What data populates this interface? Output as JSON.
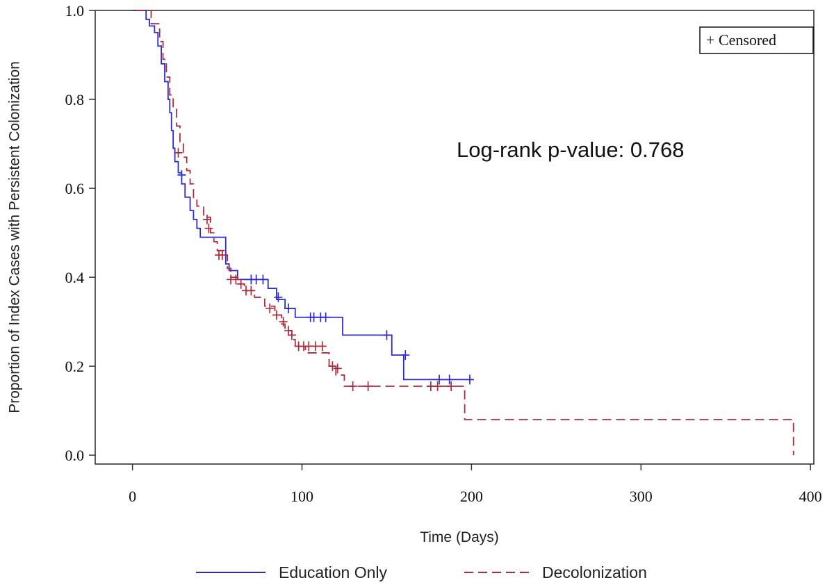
{
  "chart_data": {
    "type": "line",
    "xlabel": "Time (Days)",
    "ylabel": "Proportion of Index Cases with Persistent Colonization",
    "xlim": [
      -22,
      402
    ],
    "ylim": [
      -0.02,
      1.0
    ],
    "xticks": [
      0,
      100,
      200,
      300,
      400
    ],
    "xtick_labels": [
      "0",
      "100",
      "200",
      "300",
      "400"
    ],
    "yticks": [
      0.0,
      0.2,
      0.4,
      0.6,
      0.8,
      1.0
    ],
    "ytick_labels": [
      "0.0",
      "0.2",
      "0.4",
      "0.6",
      "0.8",
      "1.0"
    ],
    "annotation": "Log-rank p-value: 0.768",
    "censor_legend": "+ Censored",
    "legend_position": "bottom",
    "grid": false,
    "series": [
      {
        "name": "Education Only",
        "color": "#2b2bd6",
        "dash": "solid",
        "step_times": [
          0,
          8,
          10,
          13,
          15,
          17,
          19,
          21,
          22,
          23,
          24,
          25,
          27,
          29,
          31,
          34,
          36,
          38,
          40,
          44,
          55,
          57,
          62,
          66,
          80,
          85,
          90,
          96,
          124,
          153,
          160,
          200
        ],
        "step_values": [
          1.0,
          0.98,
          0.965,
          0.95,
          0.92,
          0.88,
          0.84,
          0.8,
          0.77,
          0.73,
          0.69,
          0.66,
          0.635,
          0.61,
          0.58,
          0.55,
          0.53,
          0.51,
          0.49,
          0.49,
          0.43,
          0.415,
          0.395,
          0.395,
          0.375,
          0.35,
          0.33,
          0.31,
          0.27,
          0.225,
          0.17,
          0.17
        ],
        "censor_times": [
          29,
          70,
          73,
          77,
          86,
          92,
          105,
          107,
          111,
          114,
          150,
          161,
          181,
          187,
          199
        ],
        "censor_values": [
          0.63,
          0.395,
          0.395,
          0.395,
          0.355,
          0.33,
          0.31,
          0.31,
          0.31,
          0.31,
          0.27,
          0.225,
          0.17,
          0.17,
          0.17
        ]
      },
      {
        "name": "Decolonization",
        "color": "#b02a3c",
        "dash": "dashed",
        "step_times": [
          2,
          11,
          16,
          18,
          20,
          22,
          24,
          26,
          28,
          30,
          32,
          34,
          36,
          38,
          42,
          46,
          48,
          50,
          54,
          56,
          58,
          62,
          66,
          72,
          78,
          84,
          88,
          90,
          94,
          96,
          102,
          116,
          120,
          125,
          196,
          390
        ],
        "step_values": [
          1.0,
          0.97,
          0.93,
          0.89,
          0.85,
          0.81,
          0.78,
          0.74,
          0.7,
          0.67,
          0.64,
          0.61,
          0.575,
          0.56,
          0.535,
          0.5,
          0.48,
          0.46,
          0.45,
          0.42,
          0.4,
          0.385,
          0.37,
          0.355,
          0.335,
          0.315,
          0.295,
          0.28,
          0.26,
          0.245,
          0.23,
          0.2,
          0.18,
          0.155,
          0.08,
          0.0
        ],
        "censor_times": [
          27,
          44,
          45,
          51,
          53,
          58,
          61,
          64,
          67,
          70,
          81,
          85,
          89,
          92,
          94,
          98,
          101,
          104,
          108,
          112,
          118,
          121,
          130,
          139,
          176,
          180,
          188
        ],
        "censor_values": [
          0.68,
          0.53,
          0.51,
          0.45,
          0.45,
          0.395,
          0.395,
          0.385,
          0.37,
          0.37,
          0.33,
          0.315,
          0.3,
          0.28,
          0.27,
          0.245,
          0.245,
          0.245,
          0.245,
          0.245,
          0.2,
          0.195,
          0.155,
          0.155,
          0.155,
          0.155,
          0.155
        ]
      }
    ]
  }
}
